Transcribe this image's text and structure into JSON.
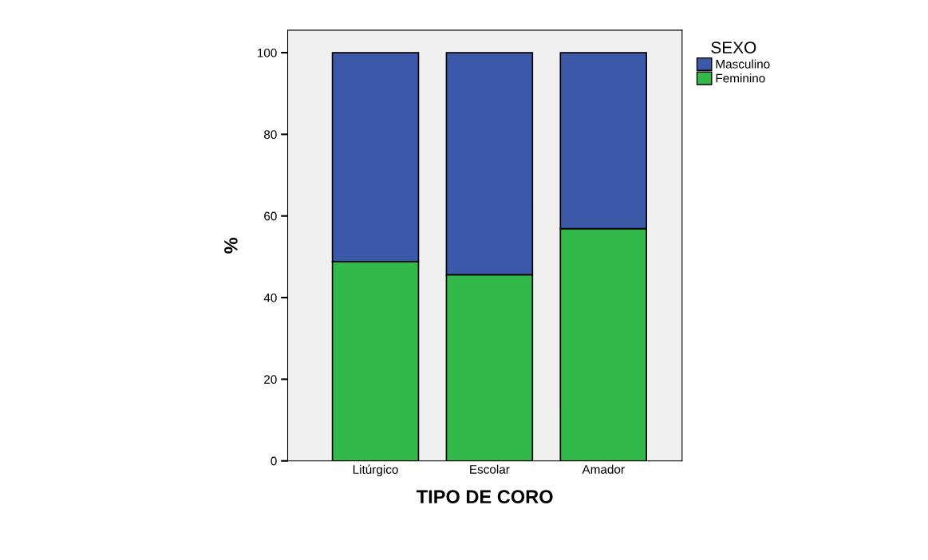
{
  "chart_data": {
    "type": "bar",
    "stacked": true,
    "xlabel": "TIPO DE CORO",
    "ylabel": "%",
    "legend_title": "SEXO",
    "legend": "right",
    "categories": [
      "Litúrgico",
      "Escolar",
      "Amador"
    ],
    "series": [
      {
        "name": "Feminino",
        "color": "#33b84a",
        "values": [
          48.8,
          45.6,
          56.9
        ]
      },
      {
        "name": "Masculino",
        "color": "#3c58a8",
        "values": [
          51.2,
          54.4,
          43.1
        ]
      }
    ],
    "ylim": [
      0,
      105.5
    ],
    "yticks": [
      0,
      20,
      40,
      60,
      80,
      100
    ],
    "grid": false
  }
}
